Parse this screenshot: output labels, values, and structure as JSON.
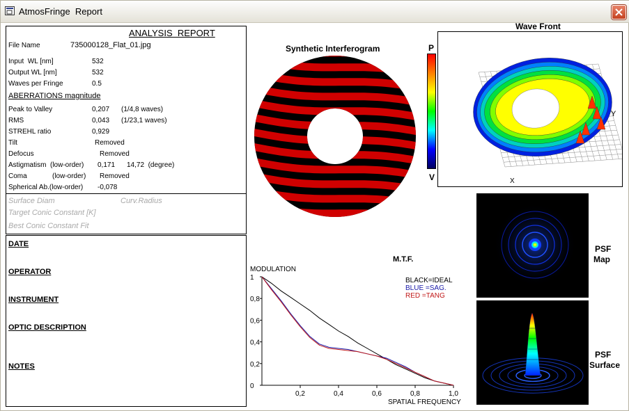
{
  "window": {
    "title": "AtmosFringe  Report"
  },
  "report": {
    "heading": "ANALYSIS  REPORT",
    "file_name_label": "File Name",
    "file_name_value": "735000128_Flat_01.jpg",
    "input_wl_label": "Input  WL [nm]",
    "input_wl_value": "532",
    "output_wl_label": "Output WL [nm]",
    "output_wl_value": "532",
    "waves_per_fringe_label": "Waves per Fringe",
    "waves_per_fringe_value": "0.5",
    "aberrations_heading": "ABERRATIONS magnitude",
    "ptv_label": "Peak to Valley",
    "ptv_value": "0,207",
    "ptv_note": "(1/4,8 waves)",
    "rms_label": "RMS",
    "rms_value": "0,043",
    "rms_note": "(1/23,1 waves)",
    "strehl_label": "STREHL ratio",
    "strehl_value": "0,929",
    "tilt_label": "Tilt",
    "tilt_value": "Removed",
    "defocus_label": "Defocus",
    "defocus_value": "Removed",
    "astig_label": "Astigmatism  (low-order)",
    "astig_value": "0,171",
    "astig_note": "14,72  (degree)",
    "coma_label": "Coma",
    "coma_sub": "(low-order)",
    "coma_value": "Removed",
    "spherical_label": "Spherical Ab.(low-order)",
    "spherical_value": "-0,078",
    "surface_diam_label": "Surface Diam",
    "curv_radius_label": "Curv.Radius",
    "target_conic_label": "Target Conic Constant [K]",
    "best_conic_label": "Best Conic Constant Fit"
  },
  "info": {
    "date": "DATE",
    "operator": "OPERATOR",
    "instrument": "INSTRUMENT",
    "optic_description": "OPTIC DESCRIPTION",
    "notes": "NOTES"
  },
  "interferogram": {
    "title": "Synthetic Interferogram",
    "stripe_color": "#d00000",
    "dark_color": "#000000"
  },
  "colorbar": {
    "top_label": "P",
    "bottom_label": "V"
  },
  "wavefront": {
    "title": "Wave Front",
    "y_axis": "Y",
    "x_axis": "X"
  },
  "psf_map": {
    "label_line1": "PSF",
    "label_line2": "Map"
  },
  "psf_surface": {
    "label_line1": "PSF",
    "label_line2": "Surface"
  },
  "mtf": {
    "title": "M.T.F.",
    "legend": {
      "black": "BLACK=IDEAL",
      "blue": "BLUE  =SAG.",
      "red": "RED    =TANG"
    },
    "colors": {
      "ideal": "#000000",
      "sag": "#1a1aa8",
      "tang": "#c01818"
    }
  },
  "chart_data": {
    "type": "line",
    "title": "M.T.F.",
    "xlabel": "SPATIAL FREQUENCY",
    "ylabel": "MODULATION",
    "xlim": [
      0,
      1.0
    ],
    "ylim": [
      0,
      1
    ],
    "x_ticks": [
      "0,2",
      "0,4",
      "0,6",
      "0,8",
      "1,0"
    ],
    "y_ticks": [
      "0",
      "0,2",
      "0,4",
      "0,6",
      "0,8",
      "1"
    ],
    "x": [
      0,
      0.05,
      0.1,
      0.15,
      0.2,
      0.25,
      0.3,
      0.35,
      0.4,
      0.45,
      0.5,
      0.55,
      0.6,
      0.65,
      0.7,
      0.75,
      0.8,
      0.85,
      0.9,
      0.95,
      1.0
    ],
    "series": [
      {
        "name": "BLACK=IDEAL",
        "values": [
          1.0,
          0.94,
          0.87,
          0.81,
          0.75,
          0.69,
          0.62,
          0.56,
          0.5,
          0.45,
          0.39,
          0.34,
          0.29,
          0.24,
          0.19,
          0.15,
          0.11,
          0.07,
          0.04,
          0.02,
          0.0
        ]
      },
      {
        "name": "BLUE  =SAG.",
        "values": [
          1.0,
          0.89,
          0.78,
          0.66,
          0.55,
          0.45,
          0.38,
          0.35,
          0.34,
          0.33,
          0.31,
          0.29,
          0.27,
          0.25,
          0.21,
          0.17,
          0.12,
          0.08,
          0.04,
          0.02,
          0.0
        ]
      },
      {
        "name": "RED    =TANG",
        "values": [
          1.0,
          0.88,
          0.77,
          0.65,
          0.54,
          0.44,
          0.37,
          0.34,
          0.33,
          0.32,
          0.31,
          0.29,
          0.27,
          0.24,
          0.2,
          0.16,
          0.12,
          0.08,
          0.04,
          0.02,
          0.0
        ]
      }
    ],
    "grid": false,
    "legend_position": "top-right"
  }
}
